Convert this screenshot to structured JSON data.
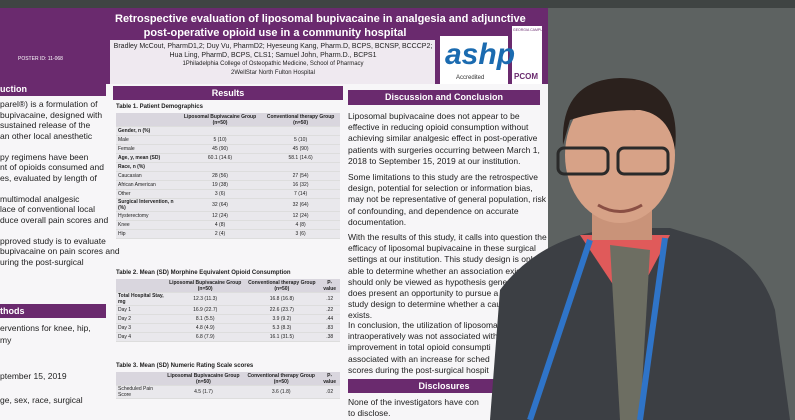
{
  "poster": {
    "title": [
      "Retrospective evaluation of liposomal bupivacaine in analgesia and adjunctive",
      "post-operative opioid use in a community hospital"
    ],
    "poster_id": "POSTER ID: 11-068",
    "authors": [
      "Bradley McCout, PharmD1,2; Duy Vu, PharmD2; Hyeseung Kang, Pharm.D, BCPS, BCNSP, BCCCP2;",
      "Hua Ling, PharmD, BCPS, CLS1; Samuel John, Pharm.D., BCPS1",
      "1Philadelphia College of Osteopathic Medicine, School of Pharmacy",
      "2WellStar North Fulton Hospital"
    ],
    "logos": {
      "ashp": "ashp",
      "accredited": "Accredited",
      "campus": "GEORGIA CAMPUS",
      "pcom": "PCOM"
    },
    "left": {
      "intro_heading": "uction",
      "intro_lines": [
        "parel®) is a formulation of",
        "bupivacaine, designed with",
        "sustained release of the",
        "an other local anesthetic",
        "",
        "py regimens have been",
        "nt of opioids consumed and",
        "es, evaluated by length of",
        "",
        "multimodal analgesic",
        "lace of conventional local",
        "duce overall pain scores and",
        "",
        "pproved study is to evaluate",
        "bupivacaine on pain scores and",
        "uring the post-surgical"
      ],
      "methods_heading": "thods",
      "methods_lines": [
        "erventions for knee, hip,",
        "my",
        "",
        "",
        "ptember 15, 2019",
        "",
        "ge, sex, race, surgical"
      ]
    },
    "results": {
      "heading": "Results",
      "tables": [
        {
          "title": "Table 1. Patient Demographics",
          "columns": [
            "",
            "Liposomal Bupivacaine Group (n=50)",
            "Conventional therapy Group (n=50)"
          ],
          "rows": [
            [
              "Gender, n (%)",
              "",
              ""
            ],
            [
              "Male",
              "5 (10)",
              "5 (10)"
            ],
            [
              "Female",
              "45 (90)",
              "45 (90)"
            ],
            [
              "Age, y, mean (SD)",
              "60.1 (14.6)",
              "58.1 (14.6)"
            ],
            [
              "Race, n (%)",
              "",
              ""
            ],
            [
              "Caucasian",
              "28 (56)",
              "27 (54)"
            ],
            [
              "African American",
              "19 (38)",
              "16 (32)"
            ],
            [
              "Other",
              "3 (6)",
              "7 (14)"
            ],
            [
              "Surgical Intervention, n (%)",
              "32 (64)",
              "32 (64)"
            ],
            [
              "Hysterectomy",
              "12 (24)",
              "12 (24)"
            ],
            [
              "Knee",
              "4 (8)",
              "4 (8)"
            ],
            [
              "Hip",
              "2 (4)",
              "3 (6)"
            ]
          ]
        },
        {
          "title": "Table 2. Mean (SD) Morphine Equivalent Opioid Consumption",
          "columns": [
            "",
            "Liposomal Bupivacaine Group (n=50)",
            "Conventional therapy Group (n=50)",
            "P-value"
          ],
          "rows": [
            [
              "Total Hospital Stay, mg",
              "12.3 (11.3)",
              "16.8 (16.8)",
              ".12"
            ],
            [
              "Day 1",
              "16.9 (22.7)",
              "22.6 (23.7)",
              ".22"
            ],
            [
              "Day 2",
              "8.1 (5.5)",
              "3.9 (9.2)",
              ".44"
            ],
            [
              "Day 3",
              "4.8 (4.9)",
              "5.3 (8.3)",
              ".83"
            ],
            [
              "Day 4",
              "6.8 (7.9)",
              "16.1 (31.5)",
              ".38"
            ]
          ]
        },
        {
          "title": "Table 3. Mean (SD) Numeric Rating Scale scores",
          "columns": [
            "",
            "Liposomal Bupivacaine Group (n=50)",
            "Conventional therapy Group (n=50)",
            "P-value"
          ],
          "rows": [
            [
              "Scheduled Pain Score",
              "4.5 (1.7)",
              "3.6 (1.8)",
              ".02"
            ]
          ]
        }
      ]
    },
    "discussion": {
      "heading": "Discussion and Conclusion",
      "paragraphs": [
        [
          "Liposomal bupivacaine does not appear to be",
          "effective in reducing opioid consumption without",
          "achieving similar analgesic effect in post-operative",
          "patients with surgeries occurring between March 1,",
          "2018 to September 15, 2019 at our institution."
        ],
        [
          "Some limitations to this study are the retrospective",
          "design, potential for selection or information bias,",
          "may not be representative of general population, risk",
          "of confounding, and dependence on accurate",
          "documentation."
        ],
        [
          "With the results of this study, it calls into question the",
          "efficacy of liposomal bupivacaine in these surgical",
          "settings at our institution. This study design is only",
          "able to determine whether an association exists, so it",
          "should only be viewed as hypothesis generating. It",
          "does present an opportunity to pursue a prospective",
          "study design to determine whether a causation",
          "exists."
        ],
        [
          "In conclusion, the utilization of liposomal",
          "intraoperatively was not associated with",
          "improvement in total opioid consumpti",
          "associated with an increase for sched",
          "scores during the post-surgical hospit"
        ]
      ],
      "disclosures_heading": "Disclosures",
      "disclosures_lines": [
        "None of the investigators have con",
        "to disclose."
      ]
    }
  }
}
